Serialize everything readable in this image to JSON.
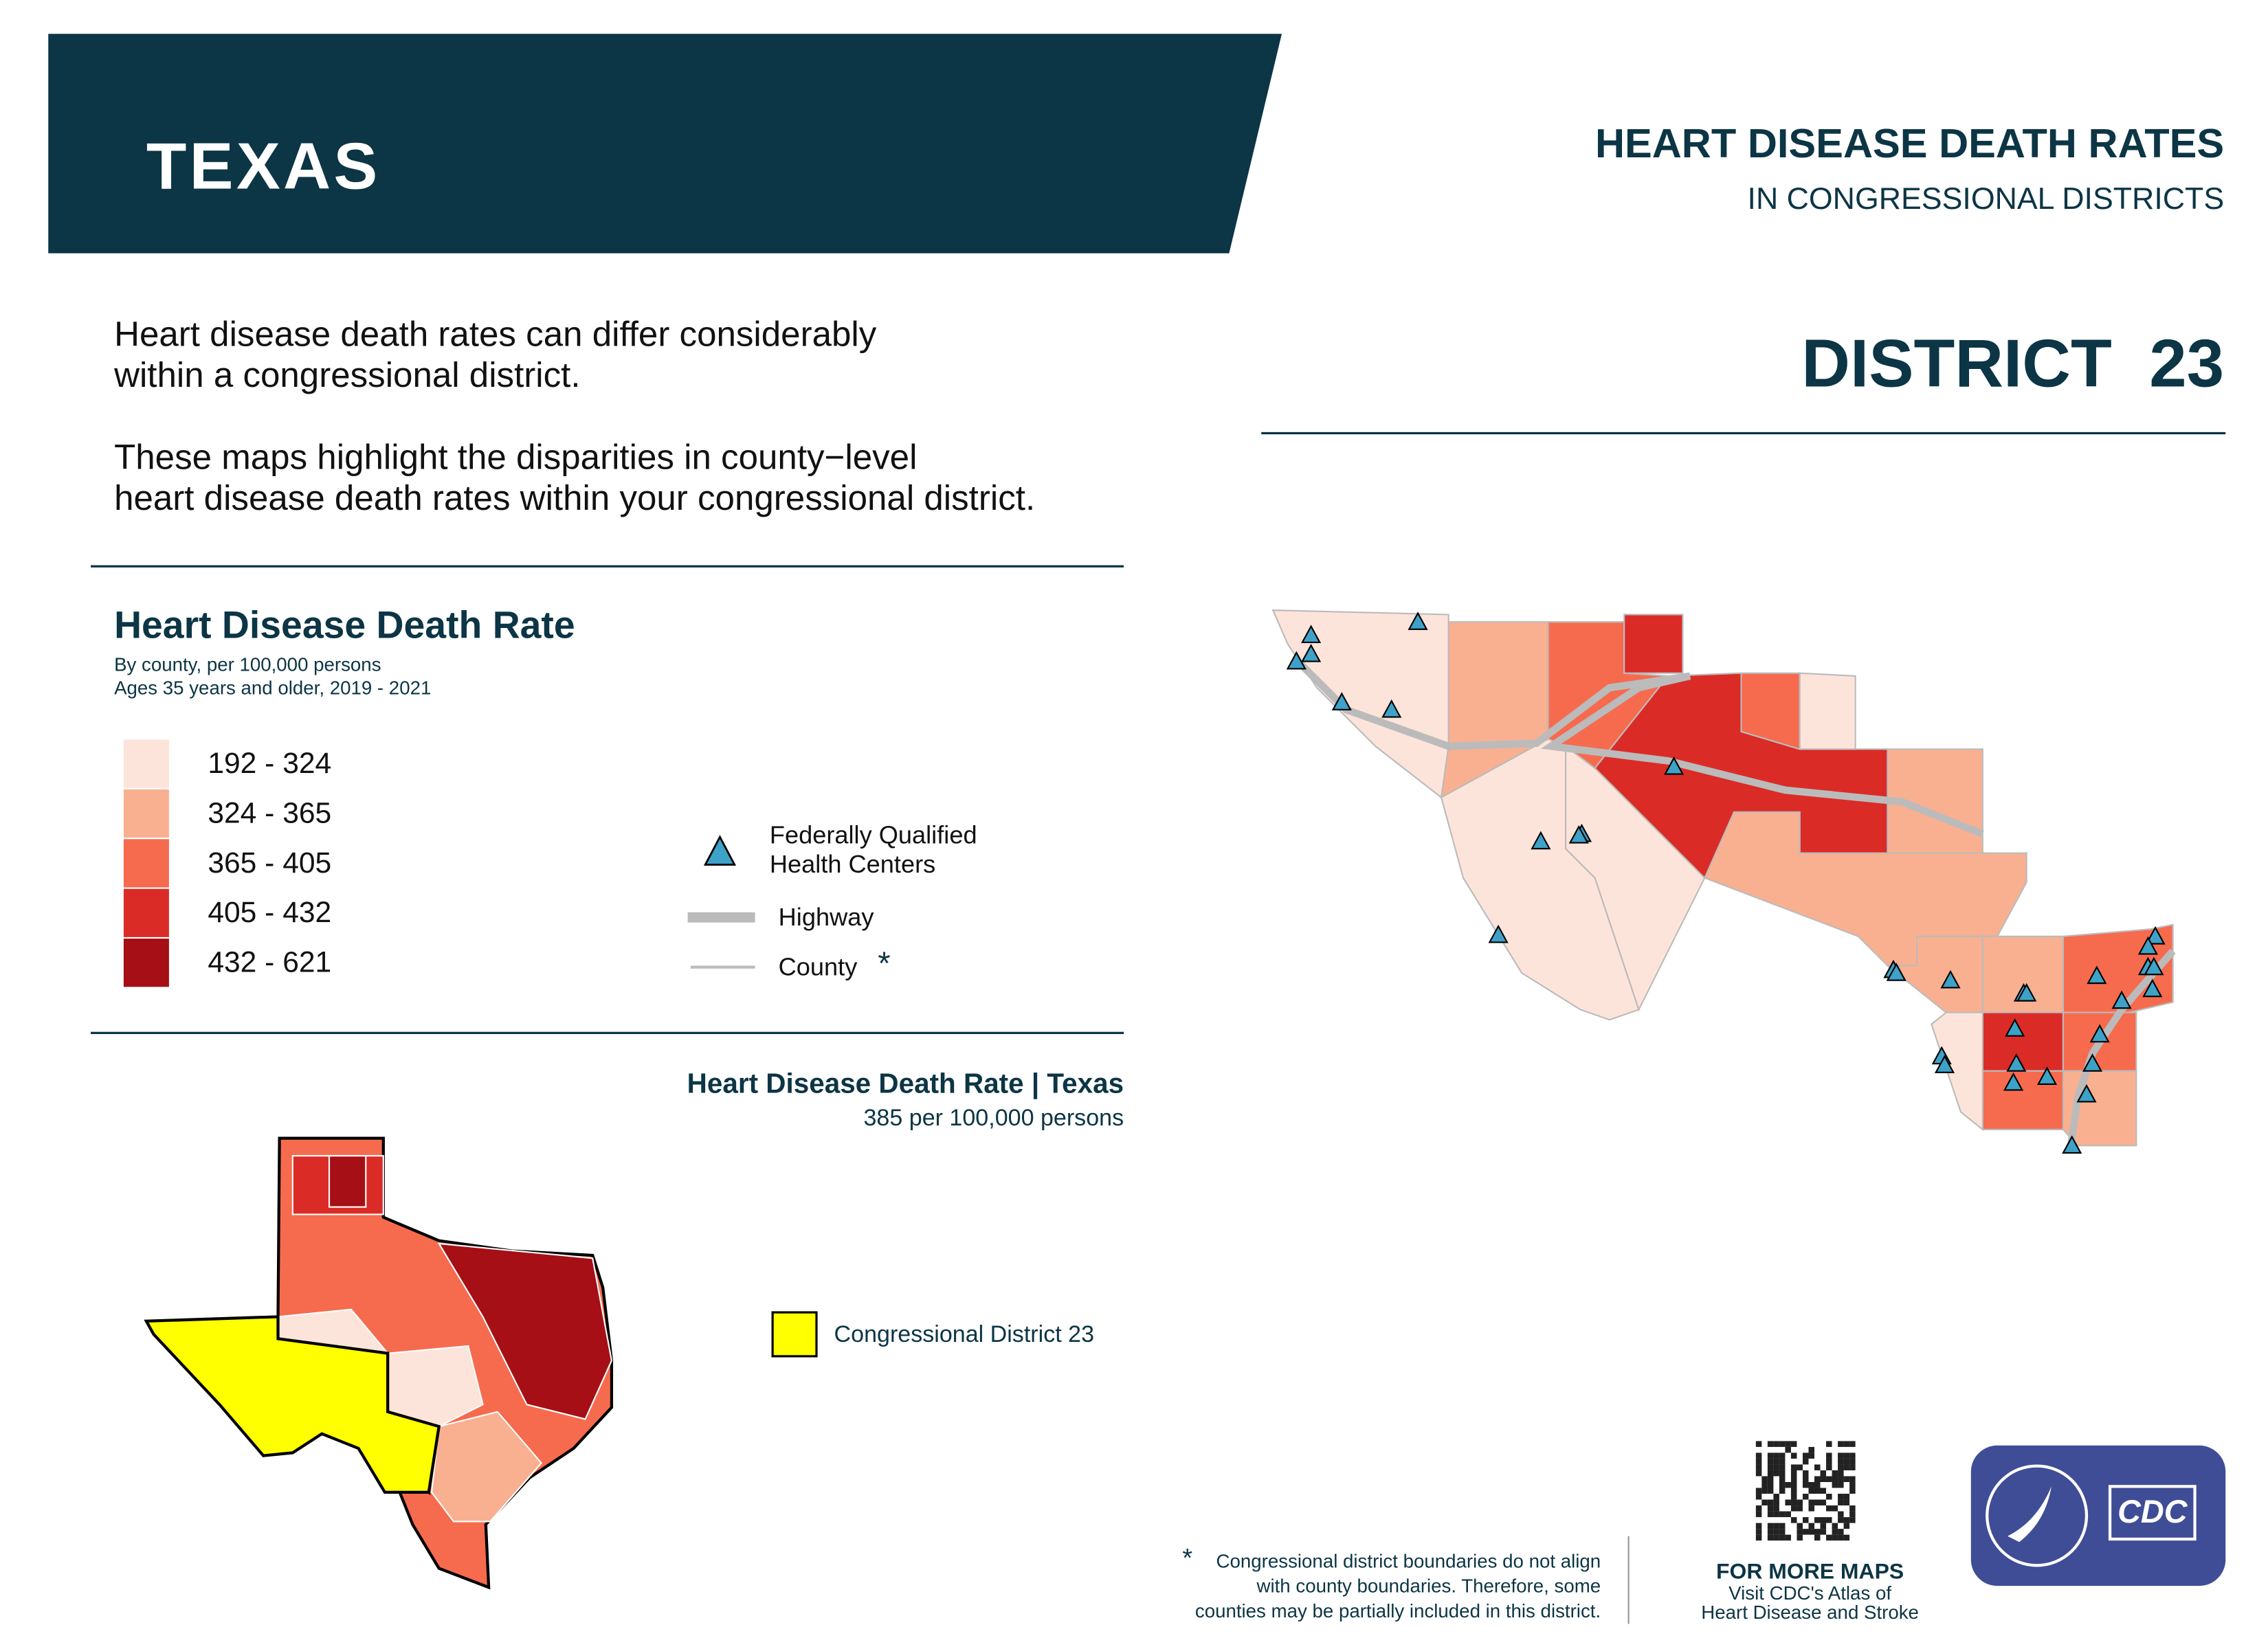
{
  "header": {
    "state": "TEXAS",
    "title": "HEART DISEASE DEATH RATES",
    "subtitle": "IN CONGRESSIONAL DISTRICTS",
    "district": "DISTRICT  23"
  },
  "intro": [
    [
      "Heart disease death rates can differ considerably",
      "within a congressional district."
    ],
    [
      "These maps highlight the disparities in county−level",
      "heart disease death rates within your congressional district."
    ]
  ],
  "legend": {
    "title": "Heart Disease Death Rate",
    "notes": [
      "By county, per 100,000 persons",
      "Ages 35 years and older, 2019 - 2021"
    ],
    "classes": [
      {
        "label": "192 - 324",
        "color": "#fde4da"
      },
      {
        "label": "324 - 365",
        "color": "#f9b090"
      },
      {
        "label": "365 - 405",
        "color": "#f66b4e"
      },
      {
        "label": "405 - 432",
        "color": "#db2b27"
      },
      {
        "label": "432 - 621",
        "color": "#a50f15"
      }
    ],
    "fqhc": [
      "Federally Qualified",
      "Health Centers"
    ],
    "highway": "Highway",
    "county": "County",
    "asterisk": "*"
  },
  "state_rate": {
    "title": "Heart Disease Death Rate | Texas",
    "value": "385 per 100,000 persons"
  },
  "inset_legend": "Congressional District 23",
  "footer": {
    "asterisk": "*",
    "note": [
      "Congressional district boundaries do not align",
      "with county boundaries. Therefore, some",
      "counties may be partially included in this district."
    ],
    "more": "FOR MORE MAPS",
    "visit": [
      "Visit CDC's Atlas of",
      "Heart Disease and Stroke"
    ]
  },
  "logo": "CDC"
}
